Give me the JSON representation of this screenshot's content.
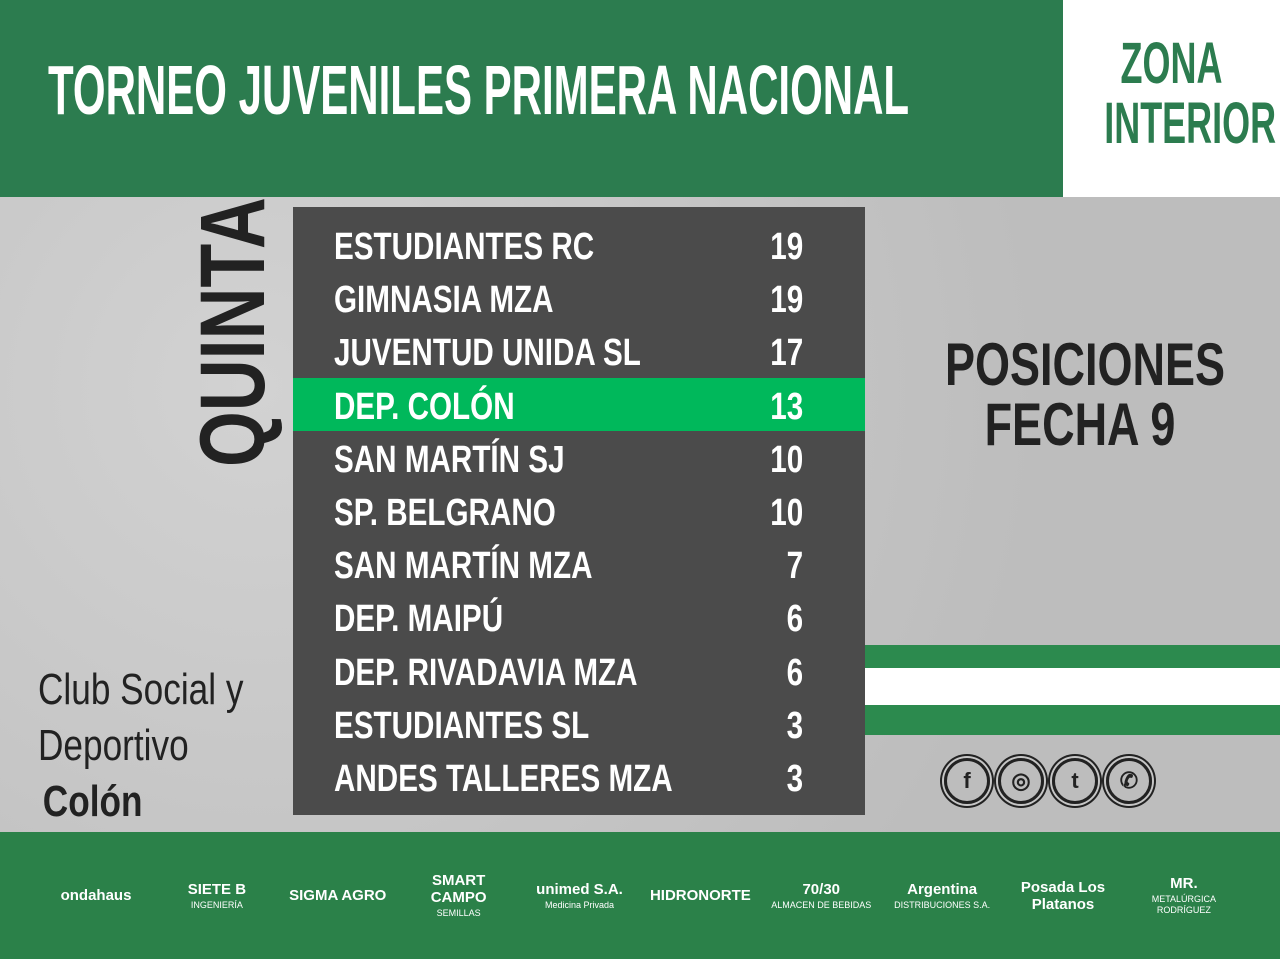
{
  "header": {
    "title": "TORNEO JUVENILES PRIMERA NACIONAL",
    "zone_line1": "ZONA",
    "zone_line2": "INTERIOR"
  },
  "category": "QUINTA",
  "standings": [
    {
      "team": "ESTUDIANTES RC",
      "points": "19"
    },
    {
      "team": "GIMNASIA MZA",
      "points": "19"
    },
    {
      "team": "JUVENTUD UNIDA SL",
      "points": "17"
    },
    {
      "team": "DEP. COLÓN",
      "points": "13",
      "highlight": true
    },
    {
      "team": "SAN MARTÍN SJ",
      "points": "10"
    },
    {
      "team": "SP. BELGRANO",
      "points": "10"
    },
    {
      "team": "SAN MARTÍN MZA",
      "points": "7"
    },
    {
      "team": "DEP. MAIPÚ",
      "points": "6"
    },
    {
      "team": "DEP. RIVADAVIA MZA",
      "points": "6"
    },
    {
      "team": "ESTUDIANTES SL",
      "points": "3"
    },
    {
      "team": "ANDES TALLERES MZA",
      "points": "3"
    }
  ],
  "subtitle": {
    "line1": "POSICIONES",
    "line2": "FECHA 9"
  },
  "club": {
    "line1": "Club Social y",
    "line2": "Deportivo",
    "line3": "Colón"
  },
  "social": [
    {
      "icon": "facebook-icon",
      "glyph": "f"
    },
    {
      "icon": "instagram-icon",
      "glyph": "◎"
    },
    {
      "icon": "twitter-icon",
      "glyph": "t"
    },
    {
      "icon": "whatsapp-icon",
      "glyph": "✆"
    }
  ],
  "sponsors": [
    {
      "name": "ondahaus",
      "sub": ""
    },
    {
      "name": "SIETE B",
      "sub": "INGENIERÍA"
    },
    {
      "name": "SIGMA AGRO",
      "sub": ""
    },
    {
      "name": "SMART CAMPO",
      "sub": "SEMILLAS"
    },
    {
      "name": "unimed S.A.",
      "sub": "Medicina Privada"
    },
    {
      "name": "HIDRONORTE",
      "sub": ""
    },
    {
      "name": "70/30",
      "sub": "ALMACEN DE BEBIDAS"
    },
    {
      "name": "Argentina",
      "sub": "DISTRIBUCIONES S.A."
    },
    {
      "name": "Posada Los Platanos",
      "sub": ""
    },
    {
      "name": "MR.",
      "sub": "METALÚRGICA RODRÍGUEZ"
    }
  ],
  "colors": {
    "green": "#2c7c4f",
    "highlight": "#00b85b",
    "table": "#4b4b4b"
  }
}
